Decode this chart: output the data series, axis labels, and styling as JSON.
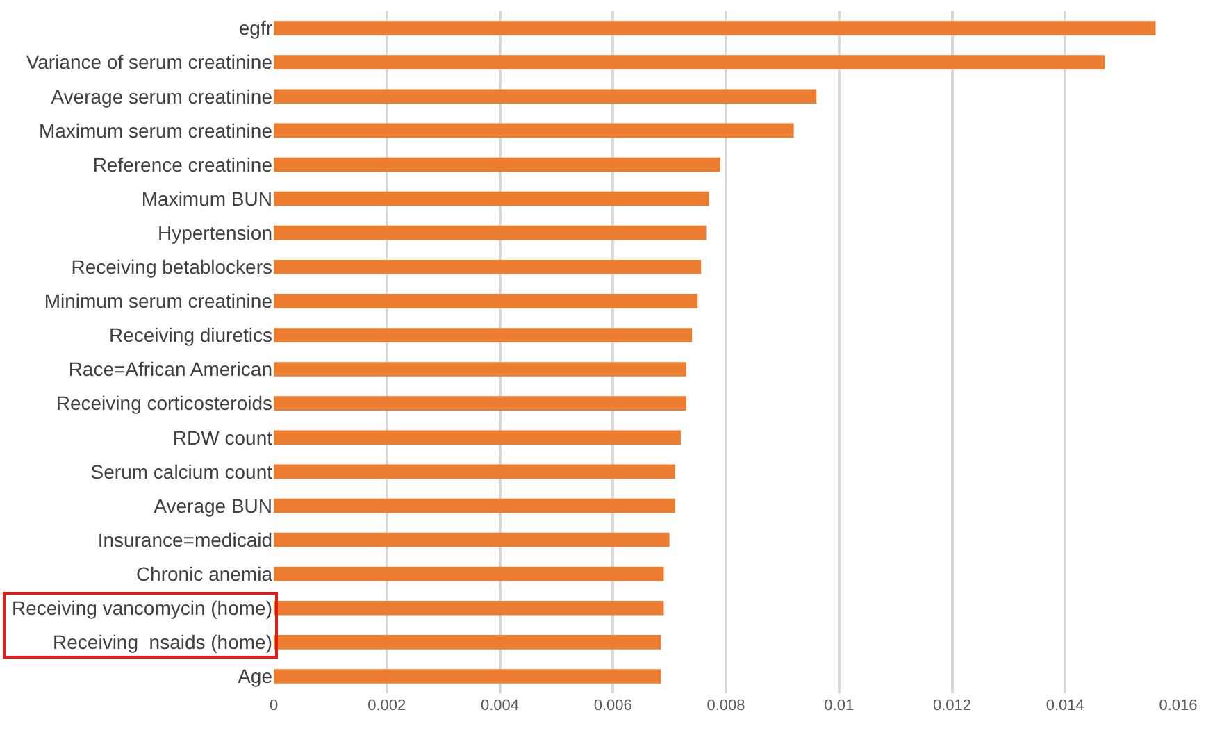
{
  "chart_data": {
    "type": "bar",
    "orientation": "horizontal",
    "categories": [
      "egfr",
      "Variance of serum creatinine",
      "Average serum creatinine",
      "Maximum serum creatinine",
      "Reference creatinine",
      "Maximum BUN",
      "Hypertension",
      "Receiving betablockers",
      "Minimum serum creatinine",
      "Receiving diuretics",
      "Race=African American",
      "Receiving corticosteroids",
      "RDW count",
      "Serum calcium count",
      "Average BUN",
      "Insurance=medicaid",
      "Chronic anemia",
      "Receiving vancomycin (home)",
      "Receiving  nsaids (home)",
      "Age"
    ],
    "values": [
      0.0156,
      0.0147,
      0.0096,
      0.0092,
      0.0079,
      0.0077,
      0.00765,
      0.00756,
      0.0075,
      0.0074,
      0.0073,
      0.0073,
      0.0072,
      0.0071,
      0.0071,
      0.007,
      0.0069,
      0.0069,
      0.00685,
      0.00685
    ],
    "color": "#ed7d31",
    "xlim": [
      0,
      0.016
    ],
    "xticks": [
      0,
      0.002,
      0.004,
      0.006,
      0.008,
      0.01,
      0.012,
      0.014,
      0.016
    ],
    "grid": "x"
  }
}
